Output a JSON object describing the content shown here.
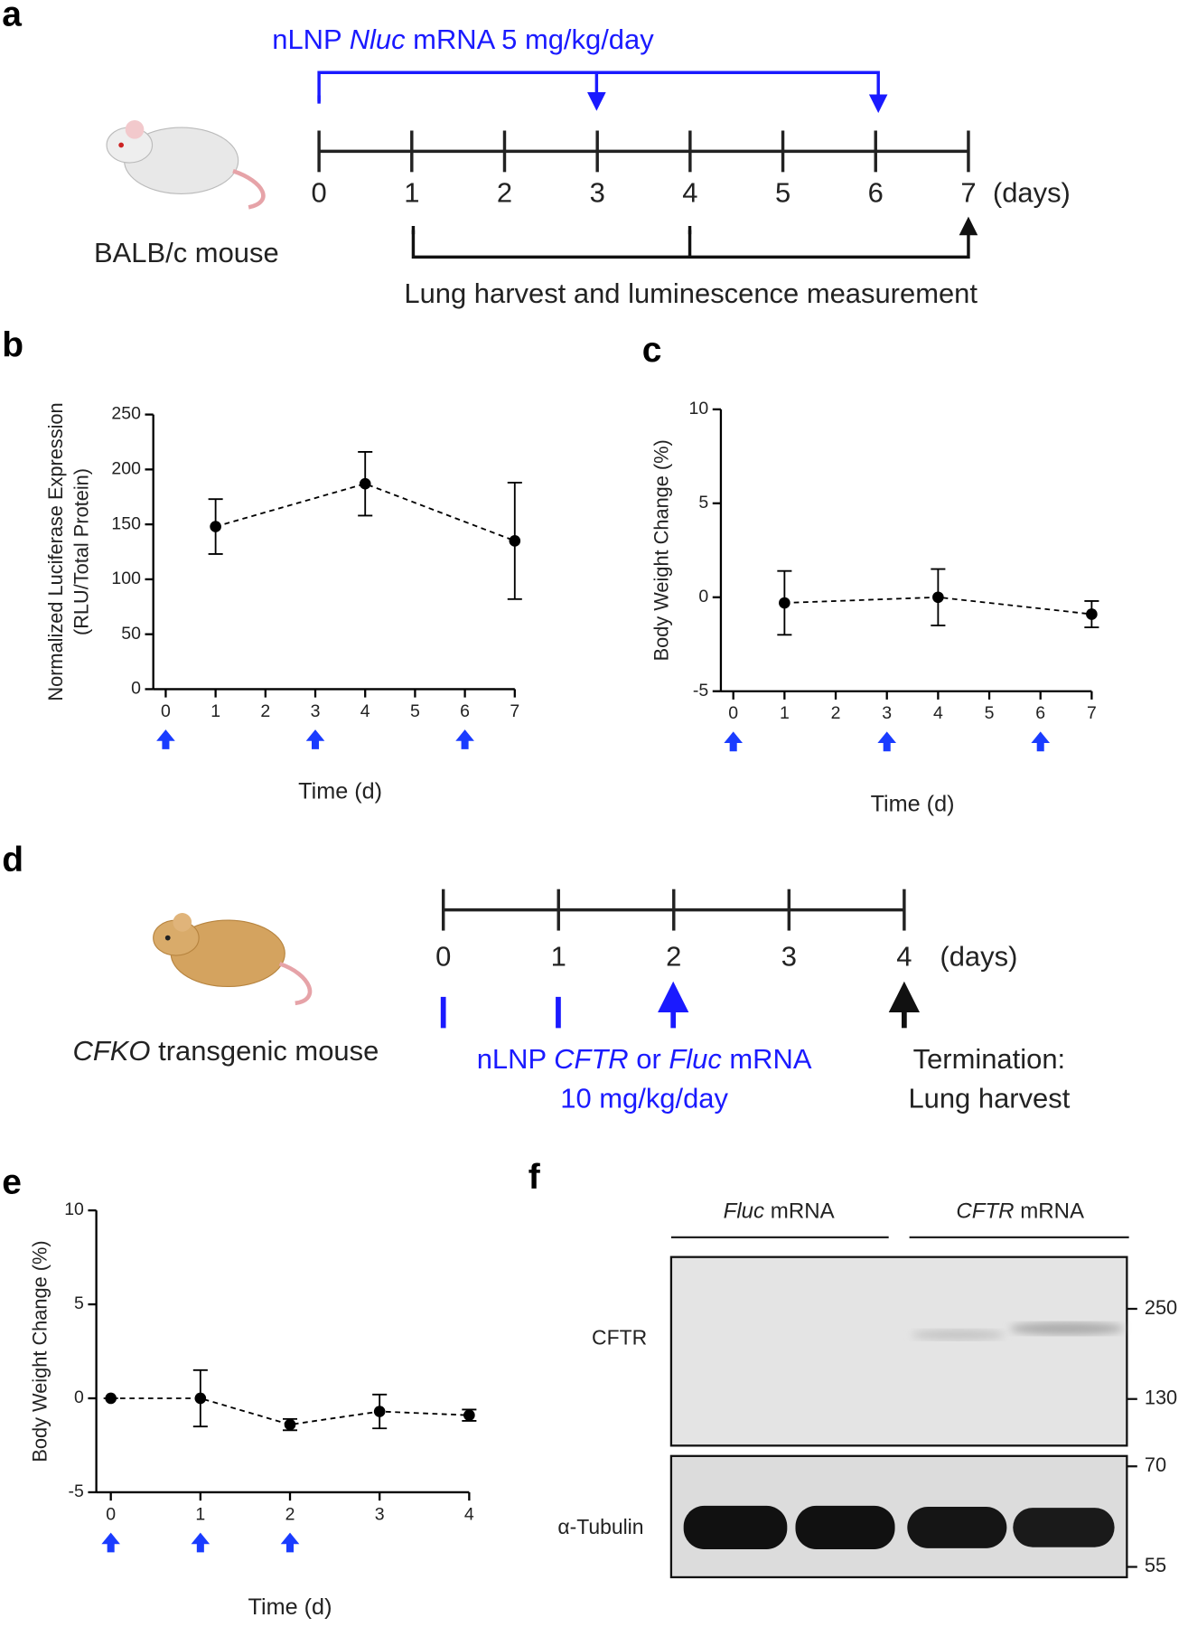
{
  "panel_a": {
    "label": "a",
    "dose_text": [
      "nLNP ",
      "Nluc",
      " mRNA 5 mg/kg/day"
    ],
    "days": [
      "0",
      "1",
      "2",
      "3",
      "4",
      "5",
      "6",
      "7"
    ],
    "unit": "(days)",
    "mouse": "BALB/c mouse",
    "harvest": "Lung harvest and luminescence measurement"
  },
  "chart_data": [
    {
      "type": "line",
      "panel_label": "b",
      "y_label": [
        "Normalized Luciferase Expression",
        "(RLU/Total Protein)"
      ],
      "x_label": "Time (d)",
      "x": [
        1,
        4,
        7
      ],
      "values": [
        148,
        187,
        135
      ],
      "errors": [
        25,
        29,
        53
      ],
      "color": "#000000",
      "dose_color": "#1a3cff",
      "dose_days": [
        0,
        3,
        6
      ],
      "xlim": [
        0,
        7
      ],
      "xticks": [
        0,
        1,
        2,
        3,
        4,
        5,
        6,
        7
      ],
      "ylim": [
        0,
        250
      ],
      "yticks": [
        0,
        50,
        100,
        150,
        200,
        250
      ]
    },
    {
      "type": "line",
      "panel_label": "c",
      "y_label": [
        "Body Weight Change (%)"
      ],
      "x_label": "Time (d)",
      "x": [
        1,
        4,
        7
      ],
      "values": [
        -0.3,
        0,
        -0.9
      ],
      "errors": [
        1.7,
        1.5,
        0.7
      ],
      "color": "#000000",
      "dose_color": "#1a3cff",
      "dose_days": [
        0,
        3,
        6
      ],
      "xlim": [
        0,
        7
      ],
      "xticks": [
        0,
        1,
        2,
        3,
        4,
        5,
        6,
        7
      ],
      "ylim": [
        -5,
        10
      ],
      "yticks": [
        -5,
        0,
        5,
        10
      ]
    },
    {
      "type": "line",
      "panel_label": "e",
      "y_label": [
        "Body Weight Change (%)"
      ],
      "x_label": "Time (d)",
      "x": [
        0,
        1,
        2,
        3,
        4
      ],
      "values": [
        0,
        0,
        -1.4,
        -0.7,
        -0.9
      ],
      "errors": [
        0,
        1.5,
        0.3,
        0.9,
        0.3
      ],
      "color": "#000000",
      "dose_color": "#1a3cff",
      "dose_days": [
        0,
        1,
        2
      ],
      "xlim": [
        0,
        4
      ],
      "xticks": [
        0,
        1,
        2,
        3,
        4
      ],
      "ylim": [
        -5,
        10
      ],
      "yticks": [
        -5,
        0,
        5,
        10
      ]
    }
  ],
  "panel_d": {
    "label": "d",
    "days": [
      "0",
      "1",
      "2",
      "3",
      "4"
    ],
    "unit": "(days)",
    "mouse": [
      "CFKO",
      " transgenic mouse"
    ],
    "dose_text": [
      "nLNP ",
      "CFTR",
      " or ",
      "Fluc",
      " mRNA"
    ],
    "dose_amount": "10 mg/kg/day",
    "termination": [
      "Termination:",
      "Lung harvest"
    ]
  },
  "panel_f": {
    "label": "f",
    "group1": [
      "Fluc",
      " mRNA"
    ],
    "group2": [
      "CFTR",
      " mRNA"
    ],
    "blot1": "CFTR",
    "blot2": "α-Tubulin",
    "markers": [
      "250",
      "130",
      "70",
      "55"
    ]
  }
}
